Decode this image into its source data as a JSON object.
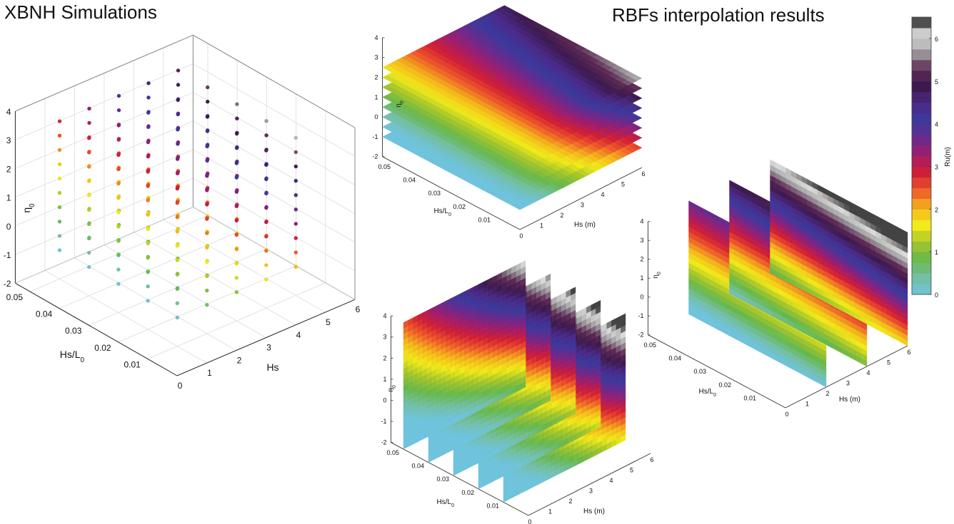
{
  "titles": {
    "left": "XBNH Simulations",
    "right": "RBFs interpolation results"
  },
  "chart_data": [
    {
      "panel": "xbnh-simulations",
      "type": "scatter",
      "title": "XBNH Simulations",
      "axes": {
        "x": {
          "label": "Hs/L",
          "label_subscript": "0",
          "range": [
            0,
            0.05
          ],
          "ticks": [
            "0.01",
            "0.02",
            "0.03",
            "0.04",
            "0.05"
          ]
        },
        "y": {
          "label": "Hs",
          "range": [
            0,
            6
          ],
          "ticks": [
            "0",
            "1",
            "2",
            "3",
            "4",
            "5",
            "6"
          ]
        },
        "z": {
          "label": "η",
          "label_subscript": "0",
          "range": [
            -2,
            4
          ],
          "ticks": [
            "-2",
            "-1",
            "0",
            "1",
            "2",
            "3",
            "4"
          ]
        }
      },
      "grid": true,
      "sample_design": {
        "Hs_values": [
          1,
          2,
          3,
          4,
          5
        ],
        "Hs_over_L0_values": [
          0.01,
          0.02,
          0.03,
          0.04,
          0.05
        ],
        "eta0_values": [
          -1,
          -0.5,
          0,
          0.5,
          1,
          1.5,
          2,
          2.5,
          3,
          3.5
        ],
        "color_variable": "Ru(m)"
      }
    },
    {
      "panel": "rbf-horizontal-slices",
      "type": "heatmap",
      "slice_orientation": "constant eta0",
      "slice_values": [
        -1,
        -0.5,
        0,
        0.5,
        1,
        1.5,
        2,
        2.5
      ],
      "axes": {
        "x": {
          "label": "Hs/L",
          "label_subscript": "0",
          "ticks": [
            "0.01",
            "0.02",
            "0.03",
            "0.04",
            "0.05"
          ]
        },
        "y": {
          "label": "Hs (m)",
          "ticks": [
            "0",
            "1",
            "2",
            "3",
            "4",
            "5",
            "6"
          ]
        },
        "z": {
          "label": "η",
          "label_subscript": "0",
          "ticks": [
            "-2",
            "-1",
            "0",
            "1",
            "2",
            "3",
            "4"
          ]
        }
      }
    },
    {
      "panel": "rbf-hs-slices",
      "type": "heatmap",
      "slice_orientation": "constant Hs",
      "slice_values": [
        2,
        4,
        6
      ],
      "axes": {
        "x": {
          "label": "Hs/L",
          "label_subscript": "0",
          "ticks": [
            "0.01",
            "0.02",
            "0.03",
            "0.04",
            "0.05"
          ]
        },
        "y": {
          "label": "Hs (m)",
          "ticks": [
            "0",
            "1",
            "2",
            "3",
            "4",
            "5",
            "6"
          ]
        },
        "z": {
          "label": "η",
          "label_subscript": "0",
          "ticks": [
            "-2",
            "-1",
            "0",
            "1",
            "2",
            "3",
            "4"
          ]
        }
      }
    },
    {
      "panel": "rbf-steepness-slices",
      "type": "heatmap",
      "slice_orientation": "constant Hs/L0",
      "slice_values": [
        0.01,
        0.02,
        0.03,
        0.04,
        0.05
      ],
      "axes": {
        "x": {
          "label": "Hs/L",
          "label_subscript": "0",
          "ticks": [
            "0.01",
            "0.02",
            "0.03",
            "0.04",
            "0.05"
          ]
        },
        "y": {
          "label": "Hs (m)",
          "ticks": [
            "0",
            "1",
            "2",
            "3",
            "4",
            "5",
            "6"
          ]
        },
        "z": {
          "label": "η",
          "label_subscript": "0",
          "ticks": [
            "-2",
            "-1",
            "0",
            "1",
            "2",
            "3",
            "4"
          ]
        }
      }
    }
  ],
  "colorbar": {
    "label": "Ru(m)",
    "range": [
      0,
      6.5
    ],
    "ticks": [
      "0",
      "1",
      "2",
      "3",
      "4",
      "5",
      "6"
    ],
    "colors": [
      "#6fc3dc",
      "#74bfa4",
      "#67b84a",
      "#a4c52c",
      "#f2ea1a",
      "#f3b51b",
      "#ee5a2a",
      "#d21f34",
      "#a31d6a",
      "#6a2a8d",
      "#3a3a9c",
      "#4b2a88",
      "#3d1a4d",
      "#5e2a55",
      "#a0a0a0",
      "#dcdcdc",
      "#111111"
    ]
  }
}
